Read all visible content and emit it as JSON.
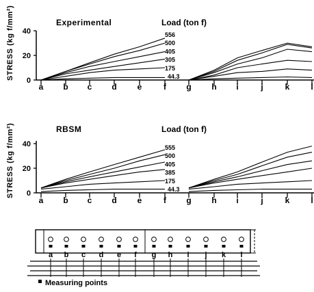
{
  "chart_data": [
    {
      "type": "line",
      "title": "Experimental",
      "legend_title": "Load (ton f)",
      "ylabel": "STRESS (kg f/mm²)",
      "categories": [
        "a",
        "b",
        "c",
        "d",
        "e",
        "f",
        "g",
        "h",
        "i",
        "j",
        "k",
        "l"
      ],
      "ylim": [
        0,
        40
      ],
      "yticks": [
        "0",
        "20",
        "40"
      ],
      "series": [
        {
          "name": "556",
          "values": [
            0,
            7,
            14,
            21,
            27,
            34,
            0,
            8,
            18,
            24,
            30,
            27
          ]
        },
        {
          "name": "500",
          "values": [
            0,
            7,
            13,
            19,
            24,
            30,
            0,
            7,
            16,
            22,
            29,
            26
          ]
        },
        {
          "name": "405",
          "values": [
            0,
            6,
            11,
            15,
            19,
            23,
            0,
            6,
            13,
            18,
            25,
            23
          ]
        },
        {
          "name": "305",
          "values": [
            0,
            5,
            8,
            11,
            14,
            17,
            0,
            4,
            10,
            13,
            16,
            15
          ]
        },
        {
          "name": "175",
          "values": [
            0,
            3,
            6,
            8,
            9,
            10,
            0,
            3,
            6,
            7,
            9,
            8
          ]
        },
        {
          "name": "44.3",
          "values": [
            0,
            1,
            1.5,
            2,
            2,
            2,
            0,
            1,
            1.5,
            2,
            2.5,
            2
          ]
        }
      ]
    },
    {
      "type": "line",
      "title": "RBSM",
      "legend_title": "Load (ton f)",
      "ylabel": "STRESS (kg f/mm²)",
      "categories": [
        "a",
        "b",
        "c",
        "d",
        "e",
        "f",
        "g",
        "h",
        "i",
        "j",
        "k",
        "l"
      ],
      "ylim": [
        0,
        40
      ],
      "yticks": [
        "0",
        "20",
        "40"
      ],
      "series": [
        {
          "name": "555",
          "values": [
            4,
            11,
            17,
            23,
            29,
            35,
            4,
            11,
            17,
            25,
            33,
            38
          ]
        },
        {
          "name": "500",
          "values": [
            4,
            10,
            15,
            20,
            26,
            31,
            4,
            10,
            15,
            22,
            29,
            33
          ]
        },
        {
          "name": "405",
          "values": [
            4,
            9,
            13,
            17,
            21,
            25,
            4,
            9,
            13,
            18,
            23,
            26
          ]
        },
        {
          "name": "385",
          "values": [
            4,
            8,
            11,
            14,
            17,
            19,
            4,
            8,
            11,
            14,
            17,
            20
          ]
        },
        {
          "name": "175",
          "values": [
            3,
            5,
            7,
            8,
            9,
            10,
            3,
            5,
            7,
            8,
            9,
            10
          ]
        },
        {
          "name": "44.3",
          "values": [
            1,
            2,
            2.5,
            3,
            3,
            3,
            1,
            2,
            2.5,
            3,
            3,
            3
          ]
        }
      ]
    }
  ],
  "diagram": {
    "categories": [
      "a",
      "b",
      "c",
      "d",
      "e",
      "f",
      "g",
      "h",
      "i",
      "j",
      "k",
      "l"
    ],
    "legend": "Measuring points"
  }
}
